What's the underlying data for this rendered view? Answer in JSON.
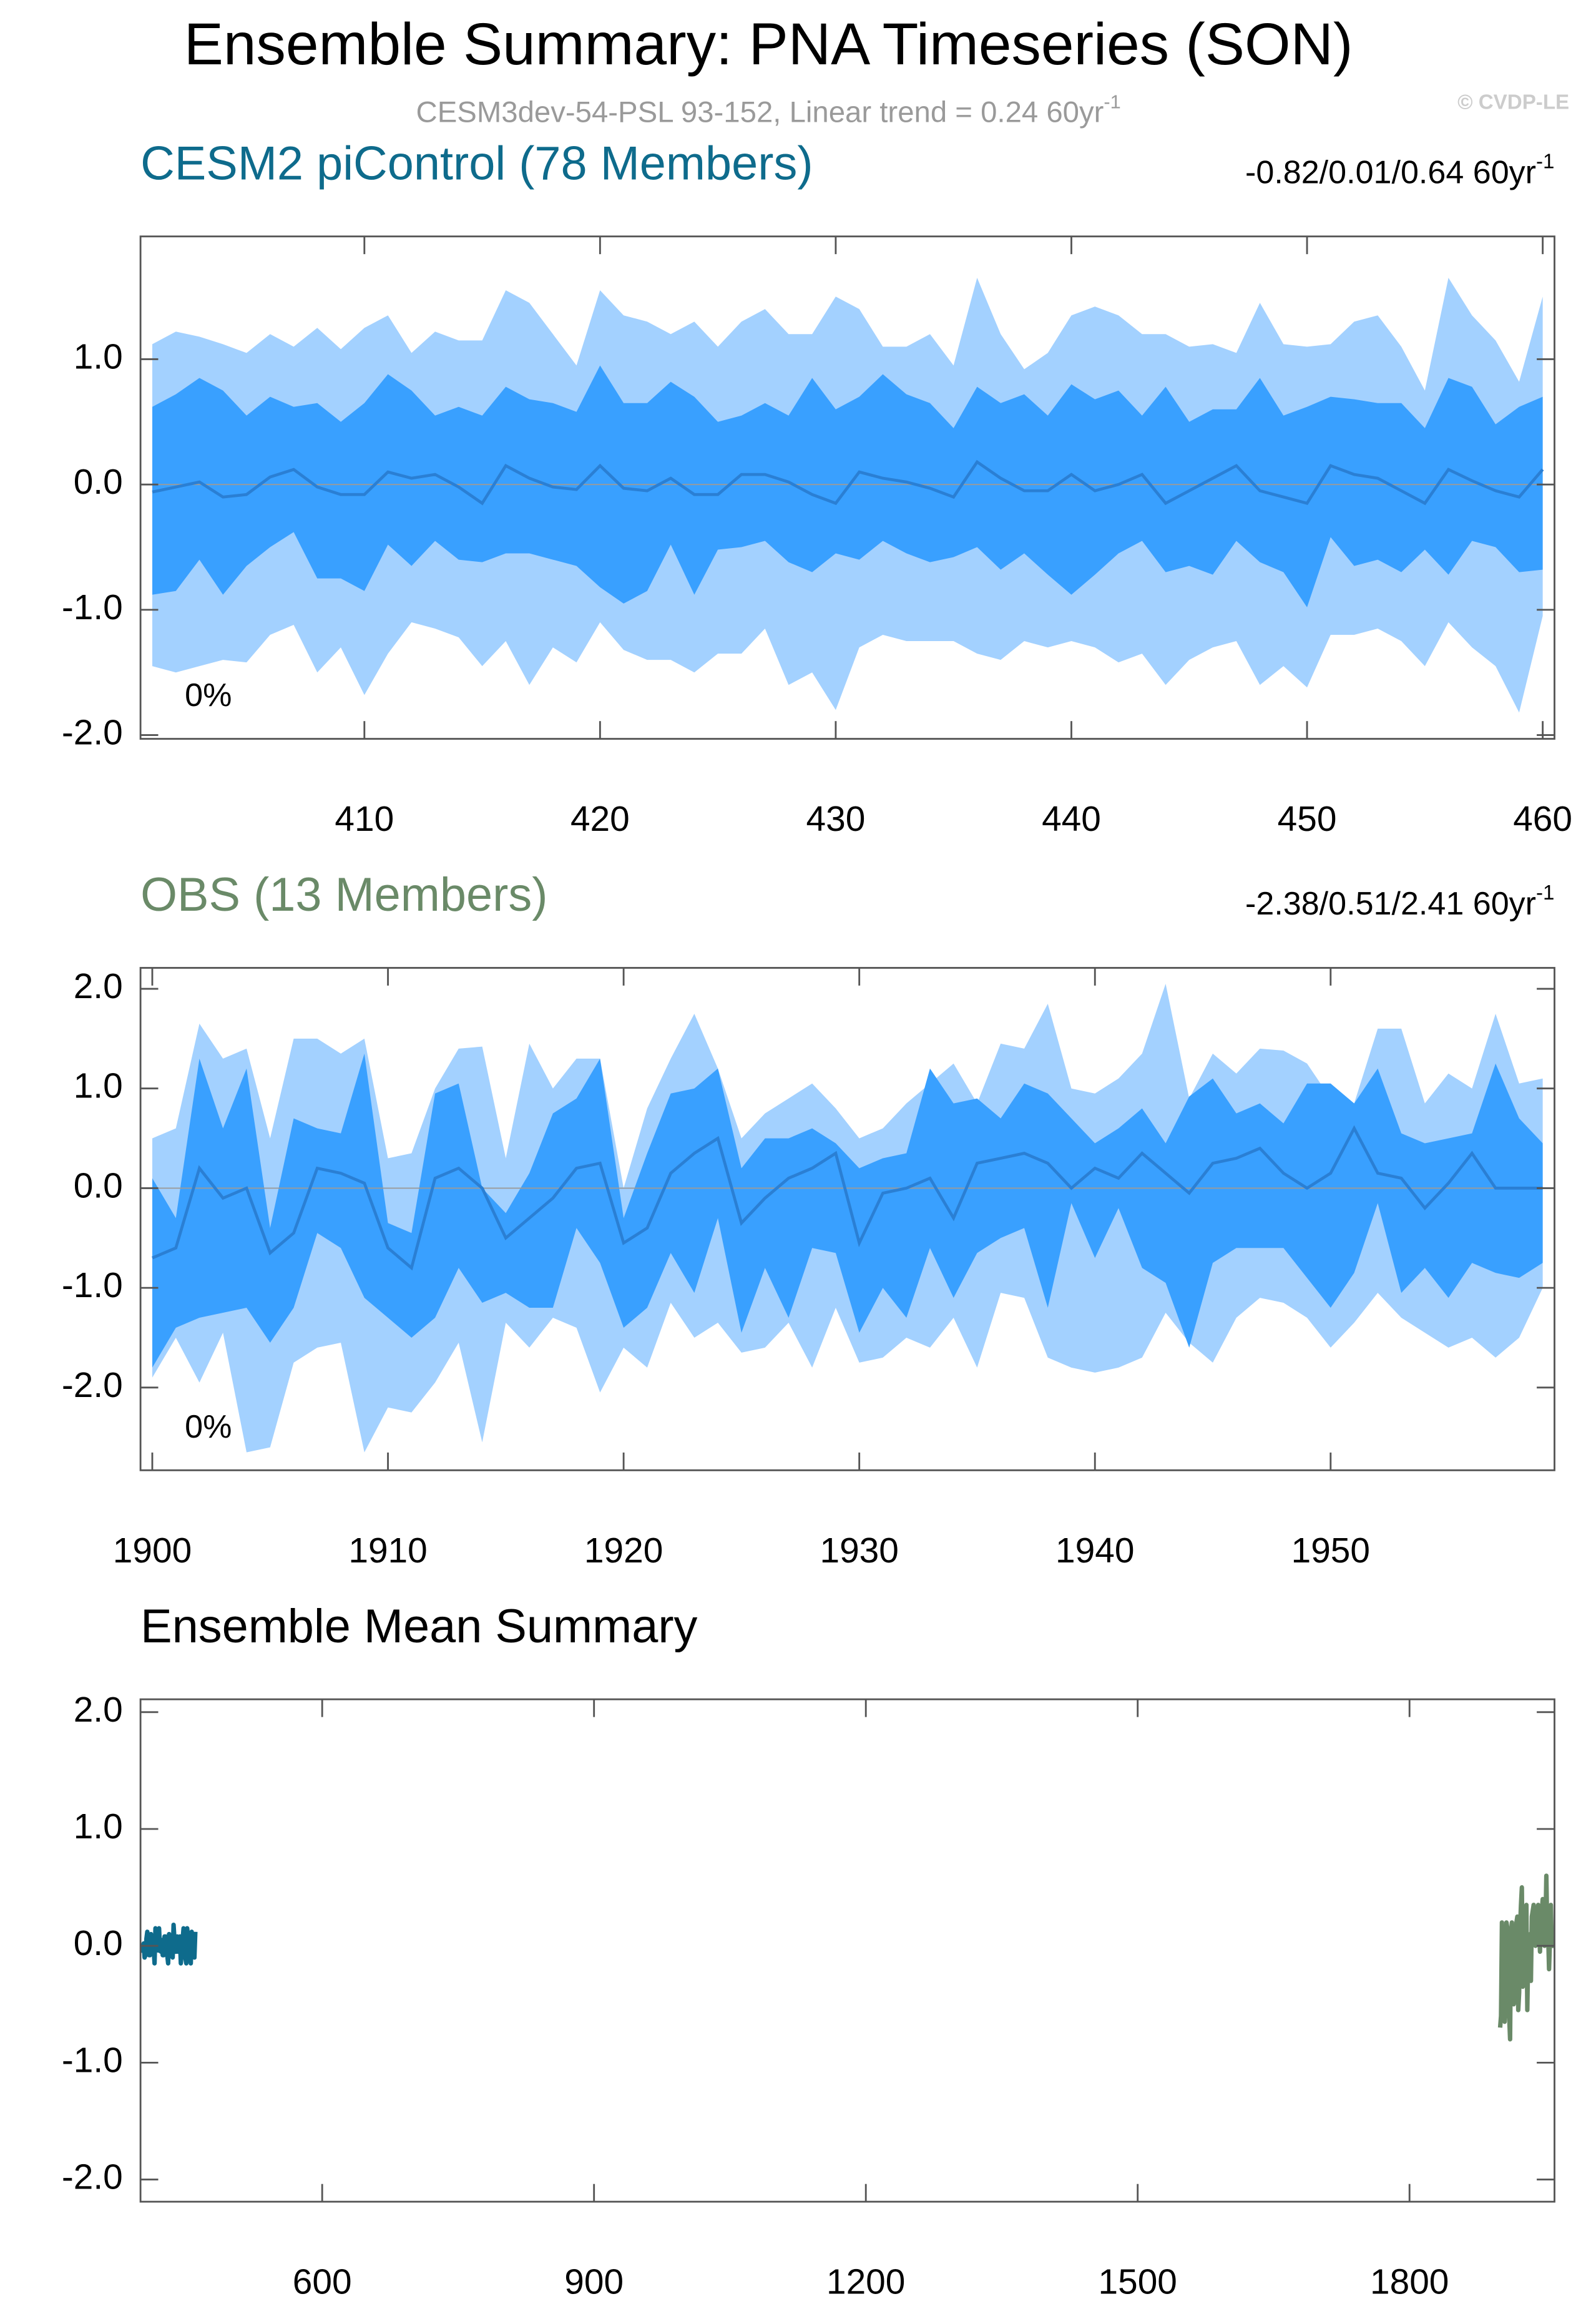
{
  "title": "Ensemble Summary: PNA Timeseries (SON)",
  "subtitle": "CESM3dev-54-PSL 93-152, Linear trend = 0.24 60yr",
  "subtitle_superscript": "-1",
  "credit": "© CVDP-LE",
  "chart_data": [
    {
      "type": "band",
      "title": "CESM2 piControl (78 Members)",
      "title_color": "#0e6b8c",
      "trend": "-0.82/0.01/0.64 60yr",
      "trend_superscript": "-1",
      "annotation": "0%",
      "x": [
        401,
        402,
        403,
        404,
        405,
        406,
        407,
        408,
        409,
        410,
        411,
        412,
        413,
        414,
        415,
        416,
        417,
        418,
        419,
        420,
        421,
        422,
        423,
        424,
        425,
        426,
        427,
        428,
        429,
        430,
        431,
        432,
        433,
        434,
        435,
        436,
        437,
        438,
        439,
        440,
        441,
        442,
        443,
        444,
        445,
        446,
        447,
        448,
        449,
        450,
        451,
        452,
        453,
        454,
        455,
        456,
        457,
        458,
        459,
        460
      ],
      "xlim": [
        400.5,
        460.5
      ],
      "xticks": [
        410,
        420,
        430,
        440,
        450,
        460
      ],
      "ylim": [
        -2.03,
        1.98
      ],
      "yticks": [
        {
          "value": -2,
          "label": "-2.0"
        },
        {
          "value": -1,
          "label": "-1.0"
        },
        {
          "value": 0,
          "label": "0.0"
        },
        {
          "value": 1,
          "label": "1.0"
        }
      ],
      "bands": [
        {
          "color": "#a3d1ff",
          "upper": [
            1.12,
            1.22,
            1.18,
            1.12,
            1.05,
            1.2,
            1.1,
            1.25,
            1.08,
            1.25,
            1.35,
            1.05,
            1.22,
            1.15,
            1.15,
            1.55,
            1.45,
            1.2,
            0.95,
            1.55,
            1.35,
            1.3,
            1.2,
            1.3,
            1.1,
            1.3,
            1.4,
            1.2,
            1.2,
            1.5,
            1.4,
            1.1,
            1.1,
            1.2,
            0.95,
            1.65,
            1.2,
            0.92,
            1.05,
            1.35,
            1.42,
            1.35,
            1.2,
            1.2,
            1.1,
            1.12,
            1.05,
            1.45,
            1.12,
            1.1,
            1.12,
            1.3,
            1.35,
            1.1,
            0.75,
            1.65,
            1.35,
            1.15,
            0.82,
            1.5
          ],
          "lower": [
            -1.45,
            -1.5,
            -1.45,
            -1.4,
            -1.42,
            -1.2,
            -1.12,
            -1.5,
            -1.3,
            -1.68,
            -1.35,
            -1.1,
            -1.15,
            -1.22,
            -1.45,
            -1.25,
            -1.6,
            -1.3,
            -1.42,
            -1.1,
            -1.32,
            -1.4,
            -1.4,
            -1.5,
            -1.35,
            -1.35,
            -1.15,
            -1.6,
            -1.5,
            -1.8,
            -1.3,
            -1.2,
            -1.25,
            -1.25,
            -1.25,
            -1.35,
            -1.4,
            -1.25,
            -1.3,
            -1.25,
            -1.3,
            -1.42,
            -1.35,
            -1.6,
            -1.4,
            -1.3,
            -1.25,
            -1.6,
            -1.45,
            -1.62,
            -1.2,
            -1.2,
            -1.15,
            -1.25,
            -1.45,
            -1.1,
            -1.3,
            -1.45,
            -1.82,
            -1.05
          ]
        },
        {
          "color": "#39a0ff",
          "upper": [
            0.62,
            0.72,
            0.85,
            0.75,
            0.55,
            0.7,
            0.62,
            0.65,
            0.5,
            0.65,
            0.88,
            0.75,
            0.55,
            0.62,
            0.55,
            0.78,
            0.68,
            0.65,
            0.58,
            0.95,
            0.65,
            0.65,
            0.82,
            0.7,
            0.5,
            0.55,
            0.65,
            0.55,
            0.85,
            0.6,
            0.7,
            0.88,
            0.72,
            0.65,
            0.45,
            0.78,
            0.65,
            0.72,
            0.55,
            0.8,
            0.68,
            0.75,
            0.55,
            0.78,
            0.5,
            0.6,
            0.6,
            0.85,
            0.55,
            0.62,
            0.7,
            0.68,
            0.65,
            0.65,
            0.45,
            0.85,
            0.78,
            0.48,
            0.62,
            0.7
          ],
          "lower": [
            -0.88,
            -0.85,
            -0.6,
            -0.88,
            -0.65,
            -0.5,
            -0.38,
            -0.75,
            -0.75,
            -0.85,
            -0.48,
            -0.65,
            -0.45,
            -0.6,
            -0.62,
            -0.55,
            -0.55,
            -0.6,
            -0.65,
            -0.82,
            -0.95,
            -0.85,
            -0.48,
            -0.88,
            -0.52,
            -0.5,
            -0.45,
            -0.62,
            -0.7,
            -0.55,
            -0.6,
            -0.45,
            -0.55,
            -0.62,
            -0.58,
            -0.5,
            -0.68,
            -0.55,
            -0.72,
            -0.88,
            -0.72,
            -0.55,
            -0.45,
            -0.7,
            -0.65,
            -0.72,
            -0.45,
            -0.62,
            -0.7,
            -0.98,
            -0.42,
            -0.65,
            -0.6,
            -0.7,
            -0.52,
            -0.72,
            -0.45,
            -0.5,
            -0.7,
            -0.68
          ]
        }
      ],
      "series": [
        {
          "color": "#2a7fd4",
          "values": [
            -0.06,
            -0.02,
            0.02,
            -0.1,
            -0.08,
            0.06,
            0.12,
            -0.02,
            -0.08,
            -0.08,
            0.1,
            0.05,
            0.08,
            -0.02,
            -0.15,
            0.15,
            0.05,
            -0.02,
            -0.04,
            0.15,
            -0.03,
            -0.05,
            0.05,
            -0.08,
            -0.08,
            0.08,
            0.08,
            0.02,
            -0.08,
            -0.15,
            0.1,
            0.05,
            0.02,
            -0.03,
            -0.1,
            0.18,
            0.05,
            -0.05,
            -0.05,
            0.08,
            -0.05,
            0.0,
            0.08,
            -0.15,
            -0.05,
            0.05,
            0.15,
            -0.05,
            -0.1,
            -0.15,
            0.15,
            0.08,
            0.05,
            -0.05,
            -0.15,
            0.12,
            0.03,
            -0.05,
            -0.1,
            0.12
          ]
        }
      ]
    },
    {
      "type": "band",
      "title": "OBS (13 Members)",
      "title_color": "#6a8a68",
      "trend": "-2.38/0.51/2.41 60yr",
      "trend_superscript": "-1",
      "annotation": "0%",
      "x": [
        1900,
        1901,
        1902,
        1903,
        1904,
        1905,
        1906,
        1907,
        1908,
        1909,
        1910,
        1911,
        1912,
        1913,
        1914,
        1915,
        1916,
        1917,
        1918,
        1919,
        1920,
        1921,
        1922,
        1923,
        1924,
        1925,
        1926,
        1927,
        1928,
        1929,
        1930,
        1931,
        1932,
        1933,
        1934,
        1935,
        1936,
        1937,
        1938,
        1939,
        1940,
        1941,
        1942,
        1943,
        1944,
        1945,
        1946,
        1947,
        1948,
        1949,
        1950,
        1951,
        1952,
        1953,
        1954,
        1955,
        1956,
        1957,
        1958,
        1959
      ],
      "xlim": [
        1899.5,
        1959.5
      ],
      "xticks": [
        1900,
        1910,
        1920,
        1930,
        1940,
        1950
      ],
      "ylim": [
        -2.83,
        2.21
      ],
      "yticks": [
        {
          "value": -2,
          "label": "-2.0"
        },
        {
          "value": -1,
          "label": "-1.0"
        },
        {
          "value": 0,
          "label": "0.0"
        },
        {
          "value": 1,
          "label": "1.0"
        },
        {
          "value": 2,
          "label": "2.0"
        }
      ],
      "bands": [
        {
          "color": "#a3d1ff",
          "upper": [
            0.5,
            0.6,
            1.65,
            1.3,
            1.4,
            0.5,
            1.5,
            1.5,
            1.35,
            1.5,
            0.3,
            0.35,
            1.0,
            1.4,
            1.42,
            0.3,
            1.45,
            1.0,
            1.3,
            1.3,
            0.0,
            0.8,
            1.3,
            1.75,
            1.2,
            0.5,
            0.75,
            0.9,
            1.05,
            0.8,
            0.5,
            0.6,
            0.85,
            1.05,
            1.25,
            0.85,
            1.45,
            1.4,
            1.85,
            1.0,
            0.95,
            1.1,
            1.35,
            2.05,
            0.9,
            1.35,
            1.15,
            1.4,
            1.38,
            1.25,
            0.9,
            0.85,
            1.6,
            1.6,
            0.85,
            1.15,
            1.0,
            1.75,
            1.05,
            1.1
          ],
          "lower": [
            -1.9,
            -1.5,
            -1.95,
            -1.45,
            -2.65,
            -2.6,
            -1.75,
            -1.6,
            -1.55,
            -2.65,
            -2.2,
            -2.25,
            -1.95,
            -1.55,
            -2.55,
            -1.35,
            -1.6,
            -1.3,
            -1.4,
            -2.05,
            -1.6,
            -1.8,
            -1.15,
            -1.5,
            -1.35,
            -1.65,
            -1.6,
            -1.35,
            -1.8,
            -1.2,
            -1.75,
            -1.7,
            -1.5,
            -1.6,
            -1.3,
            -1.8,
            -1.05,
            -1.1,
            -1.7,
            -1.8,
            -1.85,
            -1.8,
            -1.7,
            -1.25,
            -1.55,
            -1.75,
            -1.3,
            -1.1,
            -1.15,
            -1.3,
            -1.6,
            -1.35,
            -1.05,
            -1.3,
            -1.45,
            -1.6,
            -1.5,
            -1.7,
            -1.5,
            -1.0
          ]
        },
        {
          "color": "#39a0ff",
          "upper": [
            0.1,
            -0.3,
            1.3,
            0.6,
            1.2,
            -0.4,
            0.7,
            0.6,
            0.55,
            1.35,
            -0.35,
            -0.45,
            0.95,
            1.05,
            0.0,
            -0.25,
            0.15,
            0.75,
            0.9,
            1.3,
            -0.3,
            0.35,
            0.95,
            1.0,
            1.2,
            0.2,
            0.5,
            0.5,
            0.6,
            0.45,
            0.2,
            0.3,
            0.35,
            1.2,
            0.85,
            0.9,
            0.7,
            1.05,
            0.95,
            0.7,
            0.45,
            0.6,
            0.8,
            0.45,
            0.92,
            1.1,
            0.75,
            0.85,
            0.65,
            1.05,
            1.05,
            0.85,
            1.2,
            0.55,
            0.45,
            0.5,
            0.55,
            1.25,
            0.7,
            0.45
          ],
          "lower": [
            -1.8,
            -1.4,
            -1.3,
            -1.25,
            -1.2,
            -1.55,
            -1.2,
            -0.45,
            -0.6,
            -1.1,
            -1.3,
            -1.5,
            -1.3,
            -0.8,
            -1.15,
            -1.05,
            -1.2,
            -1.2,
            -0.4,
            -0.75,
            -1.4,
            -1.2,
            -0.65,
            -1.05,
            -0.3,
            -1.45,
            -0.8,
            -1.3,
            -0.6,
            -0.65,
            -1.45,
            -1.0,
            -1.3,
            -0.6,
            -1.1,
            -0.65,
            -0.5,
            -0.4,
            -1.2,
            -0.15,
            -0.7,
            -0.2,
            -0.8,
            -0.95,
            -1.6,
            -0.75,
            -0.6,
            -0.6,
            -0.6,
            -0.9,
            -1.2,
            -0.85,
            -0.15,
            -1.05,
            -0.8,
            -1.1,
            -0.75,
            -0.85,
            -0.9,
            -0.75
          ]
        }
      ],
      "series": [
        {
          "color": "#2a7fd4",
          "values": [
            -0.7,
            -0.6,
            0.2,
            -0.1,
            0.0,
            -0.65,
            -0.45,
            0.2,
            0.15,
            0.05,
            -0.6,
            -0.8,
            0.1,
            0.2,
            0.0,
            -0.5,
            -0.3,
            -0.1,
            0.2,
            0.25,
            -0.55,
            -0.4,
            0.15,
            0.35,
            0.5,
            -0.35,
            -0.1,
            0.1,
            0.2,
            0.35,
            -0.55,
            -0.05,
            0.0,
            0.1,
            -0.3,
            0.25,
            0.3,
            0.35,
            0.25,
            0.0,
            0.2,
            0.1,
            0.35,
            0.15,
            -0.05,
            0.25,
            0.3,
            0.4,
            0.15,
            0.0,
            0.15,
            0.6,
            0.15,
            0.1,
            -0.2,
            0.05,
            0.35,
            0.0,
            0.0,
            0.0
          ]
        }
      ]
    },
    {
      "type": "mean_summary",
      "title": "Ensemble Mean Summary",
      "xlim": [
        399.5,
        1960
      ],
      "xticks": [
        600,
        900,
        1200,
        1500,
        1800
      ],
      "ylim": [
        -2.19,
        2.11
      ],
      "yticks": [
        {
          "value": -2,
          "label": "-2.0"
        },
        {
          "value": -1,
          "label": "-1.0"
        },
        {
          "value": 0,
          "label": "0.0"
        },
        {
          "value": 1,
          "label": "1.0"
        },
        {
          "value": 2,
          "label": "2.0"
        }
      ]
    }
  ]
}
